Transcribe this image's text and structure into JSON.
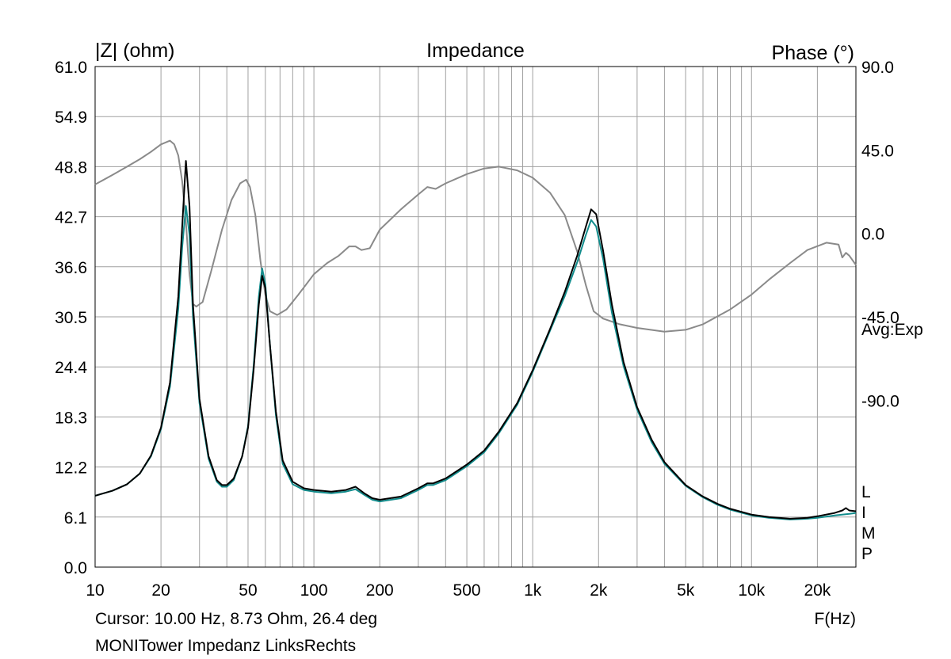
{
  "chart_data": {
    "type": "line",
    "title": "Impedance",
    "ylabel": "|Z| (ohm)",
    "y2label": "Phase (°)",
    "xlabel": "F(Hz)",
    "x_scale": "log",
    "xlim": [
      10,
      30000
    ],
    "ylim": [
      0,
      61
    ],
    "y2lim": [
      -180,
      90
    ],
    "grid": true,
    "x_ticks": [
      {
        "v": 10,
        "t": "10"
      },
      {
        "v": 20,
        "t": "20"
      },
      {
        "v": 50,
        "t": "50"
      },
      {
        "v": 100,
        "t": "100"
      },
      {
        "v": 200,
        "t": "200"
      },
      {
        "v": 500,
        "t": "500"
      },
      {
        "v": 1000,
        "t": "1k"
      },
      {
        "v": 2000,
        "t": "2k"
      },
      {
        "v": 5000,
        "t": "5k"
      },
      {
        "v": 10000,
        "t": "10k"
      },
      {
        "v": 20000,
        "t": "20k"
      }
    ],
    "y_ticks": [
      "0.0",
      "6.1",
      "12.2",
      "18.3",
      "24.4",
      "30.5",
      "36.6",
      "42.7",
      "48.8",
      "54.9",
      "61.0"
    ],
    "y2_ticks": [
      {
        "v": 90,
        "t": "90.0"
      },
      {
        "v": 45,
        "t": "45.0"
      },
      {
        "v": 0,
        "t": "0.0"
      },
      {
        "v": -45,
        "t": "-45.0"
      },
      {
        "v": -90,
        "t": "-90.0"
      }
    ],
    "side_text": "Avg:Exp",
    "channel_letters": [
      "L",
      "I",
      "M",
      "P"
    ],
    "cursor_text": "Cursor: 10.00 Hz, 8.73 Ohm, 26.4 deg",
    "footer_text": "MONITower Impedanz LinksRechts",
    "colors": {
      "impedance_L": "#000000",
      "impedance_R": "#128c8c",
      "phase": "#8a8a8a",
      "grid": "#a0a0a0"
    },
    "series": [
      {
        "role": "impedance",
        "axis": "left",
        "color": "#000000",
        "points": [
          [
            10,
            8.7
          ],
          [
            12,
            9.3
          ],
          [
            14,
            10.1
          ],
          [
            16,
            11.4
          ],
          [
            18,
            13.6
          ],
          [
            20,
            17.0
          ],
          [
            22,
            22.5
          ],
          [
            24,
            33.0
          ],
          [
            25,
            41.5
          ],
          [
            26,
            49.5
          ],
          [
            27,
            44.0
          ],
          [
            28,
            32.0
          ],
          [
            30,
            20.5
          ],
          [
            33,
            13.5
          ],
          [
            36,
            10.6
          ],
          [
            38,
            10.0
          ],
          [
            40,
            10.0
          ],
          [
            43,
            10.8
          ],
          [
            47,
            13.5
          ],
          [
            50,
            17.0
          ],
          [
            53,
            24.0
          ],
          [
            56,
            32.0
          ],
          [
            58,
            35.5
          ],
          [
            60,
            34.0
          ],
          [
            63,
            27.0
          ],
          [
            67,
            19.0
          ],
          [
            72,
            13.0
          ],
          [
            80,
            10.4
          ],
          [
            90,
            9.6
          ],
          [
            100,
            9.4
          ],
          [
            120,
            9.2
          ],
          [
            140,
            9.4
          ],
          [
            155,
            9.8
          ],
          [
            170,
            9.0
          ],
          [
            185,
            8.4
          ],
          [
            200,
            8.2
          ],
          [
            250,
            8.6
          ],
          [
            300,
            9.6
          ],
          [
            330,
            10.2
          ],
          [
            350,
            10.2
          ],
          [
            400,
            10.8
          ],
          [
            500,
            12.5
          ],
          [
            600,
            14.2
          ],
          [
            700,
            16.5
          ],
          [
            850,
            20.0
          ],
          [
            1000,
            24.0
          ],
          [
            1200,
            29.0
          ],
          [
            1400,
            33.5
          ],
          [
            1600,
            38.0
          ],
          [
            1750,
            41.5
          ],
          [
            1850,
            43.6
          ],
          [
            1950,
            43.0
          ],
          [
            2100,
            38.5
          ],
          [
            2300,
            32.0
          ],
          [
            2600,
            25.0
          ],
          [
            3000,
            19.5
          ],
          [
            3500,
            15.5
          ],
          [
            4000,
            12.8
          ],
          [
            5000,
            10.0
          ],
          [
            6000,
            8.6
          ],
          [
            7000,
            7.7
          ],
          [
            8000,
            7.1
          ],
          [
            10000,
            6.4
          ],
          [
            12000,
            6.1
          ],
          [
            15000,
            5.9
          ],
          [
            18000,
            6.0
          ],
          [
            20000,
            6.2
          ],
          [
            24000,
            6.6
          ],
          [
            26000,
            6.9
          ],
          [
            27000,
            7.2
          ],
          [
            28000,
            6.9
          ],
          [
            30000,
            6.8
          ]
        ]
      },
      {
        "role": "impedance",
        "axis": "left",
        "color": "#128c8c",
        "points": [
          [
            10,
            8.7
          ],
          [
            12,
            9.3
          ],
          [
            14,
            10.1
          ],
          [
            16,
            11.4
          ],
          [
            18,
            13.5
          ],
          [
            20,
            16.8
          ],
          [
            22,
            22.0
          ],
          [
            24,
            31.5
          ],
          [
            25,
            39.0
          ],
          [
            26,
            44.0
          ],
          [
            27,
            40.5
          ],
          [
            28,
            30.5
          ],
          [
            30,
            20.0
          ],
          [
            33,
            13.2
          ],
          [
            36,
            10.4
          ],
          [
            38,
            9.8
          ],
          [
            40,
            9.8
          ],
          [
            43,
            10.6
          ],
          [
            47,
            13.5
          ],
          [
            50,
            17.2
          ],
          [
            53,
            24.5
          ],
          [
            56,
            33.0
          ],
          [
            58,
            36.4
          ],
          [
            60,
            34.5
          ],
          [
            63,
            27.0
          ],
          [
            67,
            18.5
          ],
          [
            72,
            12.6
          ],
          [
            80,
            10.1
          ],
          [
            90,
            9.4
          ],
          [
            100,
            9.2
          ],
          [
            120,
            9.0
          ],
          [
            140,
            9.2
          ],
          [
            155,
            9.5
          ],
          [
            170,
            8.8
          ],
          [
            185,
            8.2
          ],
          [
            200,
            8.0
          ],
          [
            250,
            8.4
          ],
          [
            300,
            9.4
          ],
          [
            330,
            10.0
          ],
          [
            350,
            10.0
          ],
          [
            400,
            10.6
          ],
          [
            500,
            12.3
          ],
          [
            600,
            14.0
          ],
          [
            700,
            16.3
          ],
          [
            850,
            19.8
          ],
          [
            1000,
            23.8
          ],
          [
            1200,
            28.8
          ],
          [
            1400,
            33.0
          ],
          [
            1600,
            37.2
          ],
          [
            1750,
            40.5
          ],
          [
            1850,
            42.3
          ],
          [
            1950,
            41.5
          ],
          [
            2100,
            37.5
          ],
          [
            2300,
            31.0
          ],
          [
            2600,
            24.5
          ],
          [
            3000,
            19.2
          ],
          [
            3500,
            15.2
          ],
          [
            4000,
            12.6
          ],
          [
            5000,
            9.9
          ],
          [
            6000,
            8.5
          ],
          [
            7000,
            7.6
          ],
          [
            8000,
            7.0
          ],
          [
            10000,
            6.3
          ],
          [
            12000,
            6.0
          ],
          [
            15000,
            5.8
          ],
          [
            18000,
            5.9
          ],
          [
            20000,
            6.0
          ],
          [
            24000,
            6.3
          ],
          [
            28000,
            6.5
          ],
          [
            30000,
            6.6
          ]
        ]
      },
      {
        "role": "phase",
        "axis": "right",
        "color": "#8a8a8a",
        "points": [
          [
            10,
            26.4
          ],
          [
            12,
            31.5
          ],
          [
            14,
            36.0
          ],
          [
            16,
            40.0
          ],
          [
            18,
            44.0
          ],
          [
            20,
            48.0
          ],
          [
            22,
            50.0
          ],
          [
            23,
            48.0
          ],
          [
            24,
            42.0
          ],
          [
            25,
            28.0
          ],
          [
            26,
            6.0
          ],
          [
            27,
            -22.0
          ],
          [
            28,
            -38.0
          ],
          [
            29,
            -39.5
          ],
          [
            31,
            -37.0
          ],
          [
            34,
            -20.0
          ],
          [
            38,
            2.0
          ],
          [
            42,
            18.0
          ],
          [
            46,
            27.0
          ],
          [
            49,
            29.0
          ],
          [
            51,
            25.0
          ],
          [
            54,
            10.0
          ],
          [
            57,
            -15.0
          ],
          [
            60,
            -33.0
          ],
          [
            63,
            -42.0
          ],
          [
            68,
            -44.0
          ],
          [
            75,
            -41.0
          ],
          [
            85,
            -33.0
          ],
          [
            100,
            -22.0
          ],
          [
            115,
            -16.0
          ],
          [
            130,
            -12.0
          ],
          [
            145,
            -7.0
          ],
          [
            155,
            -7.0
          ],
          [
            165,
            -9.0
          ],
          [
            180,
            -8.0
          ],
          [
            200,
            2.0
          ],
          [
            250,
            13.0
          ],
          [
            300,
            21.0
          ],
          [
            330,
            25.0
          ],
          [
            360,
            24.0
          ],
          [
            400,
            27.0
          ],
          [
            500,
            32.0
          ],
          [
            600,
            35.0
          ],
          [
            700,
            36.0
          ],
          [
            850,
            34.0
          ],
          [
            1000,
            30.0
          ],
          [
            1200,
            22.0
          ],
          [
            1400,
            10.0
          ],
          [
            1600,
            -10.0
          ],
          [
            1750,
            -28.0
          ],
          [
            1900,
            -42.0
          ],
          [
            2100,
            -46.0
          ],
          [
            2500,
            -49.0
          ],
          [
            3000,
            -51.0
          ],
          [
            4000,
            -53.0
          ],
          [
            5000,
            -52.0
          ],
          [
            6000,
            -49.0
          ],
          [
            8000,
            -41.0
          ],
          [
            10000,
            -33.0
          ],
          [
            12000,
            -25.0
          ],
          [
            15000,
            -16.0
          ],
          [
            18000,
            -9.0
          ],
          [
            22000,
            -5.0
          ],
          [
            25000,
            -6.0
          ],
          [
            26000,
            -13.0
          ],
          [
            27000,
            -10.5
          ],
          [
            28000,
            -12.0
          ],
          [
            30000,
            -17.0
          ]
        ]
      }
    ]
  }
}
